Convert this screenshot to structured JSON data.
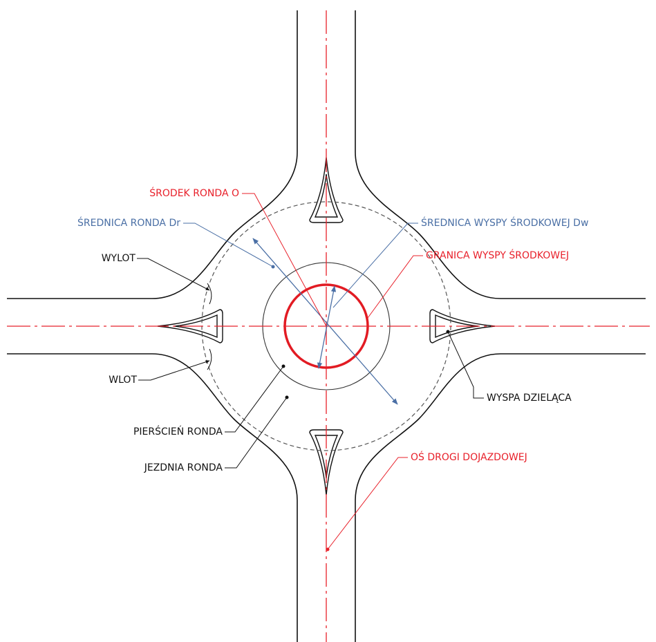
{
  "diagram": {
    "labels": {
      "center": "ŚRODEK RONDA O",
      "diameter_ring": "ŚREDNICA RONDA Dr",
      "diameter_island": "ŚREDNICA WYSPY ŚRODKOWEJ Dw",
      "island_border": "GRANICA WYSPY ŚRODKOWEJ",
      "exit": "WYLOT",
      "entry": "WLOT",
      "ring": "PIERŚCIEŃ RONDA",
      "roadway": "JEZDNIA RONDA",
      "splitter": "WYSPA DZIELĄCA",
      "axis": "OŚ DROGI DOJAZDOWEJ"
    }
  }
}
